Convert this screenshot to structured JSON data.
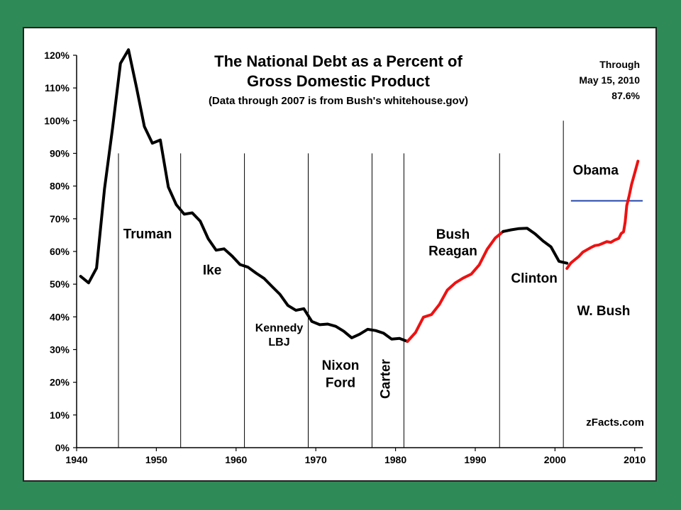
{
  "chart_data": {
    "type": "line",
    "title": "The National Debt as a Percent of",
    "title_line2": "Gross Domestic Product",
    "subtitle": "(Data through 2007 is from Bush's whitehouse.gov)",
    "note_lines": [
      "Through",
      "May 15, 2010",
      "87.6%"
    ],
    "credit": "zFacts.com",
    "xlim": [
      1940,
      2011
    ],
    "ylim": [
      0,
      120
    ],
    "x_ticks": [
      1940,
      1950,
      1960,
      1970,
      1980,
      1990,
      2000,
      2010
    ],
    "y_ticks": [
      0,
      10,
      20,
      30,
      40,
      50,
      60,
      70,
      80,
      90,
      100,
      110,
      120
    ],
    "y_tick_labels": [
      "0%",
      "10%",
      "20%",
      "30%",
      "40%",
      "50%",
      "60%",
      "70%",
      "80%",
      "90%",
      "100%",
      "110%",
      "120%"
    ],
    "grid": false,
    "series": [
      {
        "color": "#000000",
        "x": [
          1940.5,
          1941.5,
          1942.5,
          1943.5,
          1944.5,
          1945.5,
          1946.5,
          1947.5,
          1948.5,
          1949.5,
          1950.5,
          1951.5,
          1952.5,
          1953.5,
          1954.5,
          1955.5,
          1956.5,
          1957.5,
          1958.5,
          1959.5,
          1960.5,
          1961.5,
          1962.5,
          1963.5,
          1964.5,
          1965.5,
          1966.5,
          1967.5,
          1968.5,
          1969.5,
          1970.5,
          1971.5,
          1972.5,
          1973.5,
          1974.5,
          1975.5,
          1976.5,
          1977.5,
          1978.5,
          1979.5,
          1980.5,
          1981.5
        ],
        "y": [
          52.4,
          50.4,
          54.9,
          79.1,
          97.6,
          117.5,
          121.7,
          110.3,
          98.2,
          93.1,
          94.1,
          79.7,
          74.3,
          71.4,
          71.8,
          69.3,
          63.9,
          60.4,
          60.8,
          58.6,
          56.0,
          55.2,
          53.4,
          51.8,
          49.3,
          46.9,
          43.5,
          42.0,
          42.5,
          38.6,
          37.6,
          37.8,
          37.1,
          35.6,
          33.6,
          34.7,
          36.2,
          35.8,
          35.0,
          33.2,
          33.4,
          32.5
        ]
      },
      {
        "color": "#ee1111",
        "x": [
          1981.5,
          1982.5,
          1983.5,
          1984.5,
          1985.5,
          1986.5,
          1987.5,
          1988.5,
          1989.5,
          1990.5,
          1991.5,
          1992.5,
          1993.5
        ],
        "y": [
          32.5,
          35.2,
          39.9,
          40.7,
          43.8,
          48.2,
          50.4,
          51.9,
          53.1,
          55.9,
          60.7,
          64.1,
          66.1
        ]
      },
      {
        "color": "#000000",
        "x": [
          1993.5,
          1994.5,
          1995.5,
          1996.5,
          1997.5,
          1998.5,
          1999.5,
          2000.5,
          2001.5
        ],
        "y": [
          66.1,
          66.6,
          67.0,
          67.1,
          65.4,
          63.2,
          61.4,
          57.0,
          56.4
        ]
      },
      {
        "color": "#ee1111",
        "x": [
          2001.5,
          2002.0,
          2002.5,
          2003.0,
          2003.5,
          2004.0,
          2004.5,
          2005.0,
          2005.5,
          2006.0,
          2006.5,
          2007.0,
          2007.5,
          2008.0,
          2008.3,
          2008.6,
          2008.8,
          2009.0,
          2009.3,
          2009.6,
          2010.0,
          2010.4
        ],
        "y": [
          54.8,
          56.5,
          57.5,
          58.5,
          59.8,
          60.5,
          61.2,
          61.8,
          62.0,
          62.5,
          63.0,
          62.8,
          63.5,
          64.0,
          65.5,
          66.0,
          69.0,
          74.0,
          77.0,
          80.5,
          84.0,
          87.6
        ]
      }
    ],
    "era_dividers": [
      1945.25,
      1953.05,
      1961.05,
      1969.05,
      1977.05,
      1981.05,
      1993.05,
      2001.05
    ],
    "era_labels": [
      {
        "text": "Truman",
        "x": 1948.9,
        "y": 64
      },
      {
        "text": "Ike",
        "x": 1957.0,
        "y": 53
      },
      {
        "text": "Kennedy",
        "x": 1965.4,
        "y": 35.5
      },
      {
        "text": "LBJ",
        "x": 1965.4,
        "y": 31.2
      },
      {
        "text": "Nixon",
        "x": 1973.1,
        "y": 23.8
      },
      {
        "text": "Ford",
        "x": 1973.1,
        "y": 18.5
      },
      {
        "text": "Bush",
        "x": 1987.2,
        "y": 63.9
      },
      {
        "text": "Reagan",
        "x": 1987.2,
        "y": 58.8
      },
      {
        "text": "Clinton",
        "x": 1997.4,
        "y": 50.5
      },
      {
        "text": "Obama",
        "x": 2005.1,
        "y": 83.5
      },
      {
        "text": "W. Bush",
        "x": 2006.1,
        "y": 40.5
      }
    ],
    "carter_label": {
      "text": "Carter",
      "x": 1979.3,
      "y": 21
    },
    "obama_reference_line": {
      "y": 75.5,
      "x_start": 2002.0,
      "x_end": 2011.0,
      "color": "#2244aa"
    }
  }
}
